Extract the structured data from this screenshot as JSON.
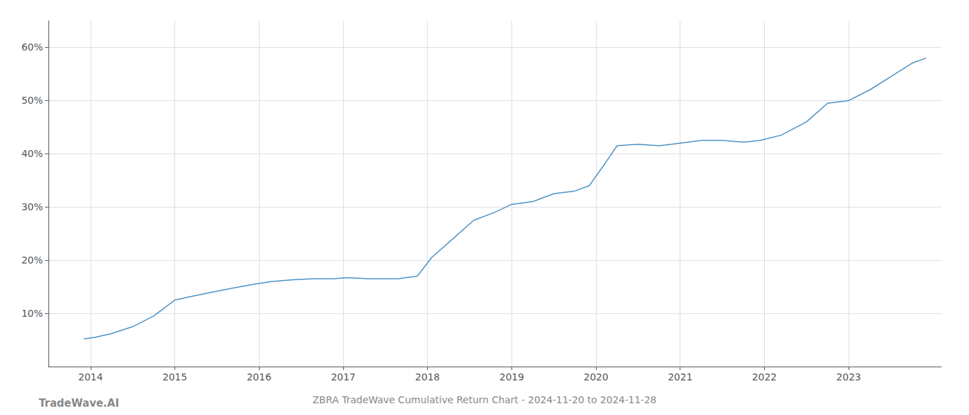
{
  "chart_data": {
    "type": "line",
    "title": "ZBRA TradeWave Cumulative Return Chart - 2024-11-20 to 2024-11-28",
    "annotations": [
      "TradeWave.AI"
    ],
    "x": [
      2013.92,
      2014.05,
      2014.25,
      2014.5,
      2014.75,
      2015.0,
      2015.2,
      2015.45,
      2015.7,
      2015.95,
      2016.15,
      2016.4,
      2016.65,
      2016.88,
      2017.05,
      2017.3,
      2017.65,
      2017.88,
      2018.05,
      2018.3,
      2018.55,
      2018.8,
      2019.0,
      2019.25,
      2019.5,
      2019.75,
      2019.92,
      2020.1,
      2020.25,
      2020.5,
      2020.75,
      2021.0,
      2021.25,
      2021.5,
      2021.75,
      2021.95,
      2022.2,
      2022.5,
      2022.75,
      2023.0,
      2023.25,
      2023.5,
      2023.75,
      2023.92
    ],
    "values": [
      5.2,
      5.5,
      6.2,
      7.5,
      9.5,
      12.5,
      13.2,
      14.0,
      14.8,
      15.5,
      16.0,
      16.3,
      16.5,
      16.5,
      16.7,
      16.5,
      16.5,
      17.0,
      20.5,
      24.0,
      27.5,
      29.0,
      30.5,
      31.0,
      32.5,
      33.0,
      34.0,
      38.0,
      41.5,
      41.8,
      41.5,
      42.0,
      42.5,
      42.5,
      42.2,
      42.5,
      43.5,
      46.0,
      49.5,
      50.0,
      52.0,
      54.5,
      57.0,
      58.0
    ],
    "color": "#4a90c4",
    "xlim": [
      2013.5,
      2024.1
    ],
    "ylim": [
      0,
      65
    ],
    "xticks": [
      2014,
      2015,
      2016,
      2017,
      2018,
      2019,
      2020,
      2021,
      2022,
      2023
    ],
    "yticks": [
      {
        "value": 10,
        "label": "10%"
      },
      {
        "value": 20,
        "label": "20%"
      },
      {
        "value": 30,
        "label": "30%"
      },
      {
        "value": 40,
        "label": "40%"
      },
      {
        "value": 50,
        "label": "50%"
      },
      {
        "value": 60,
        "label": "60%"
      }
    ],
    "grid": true
  }
}
